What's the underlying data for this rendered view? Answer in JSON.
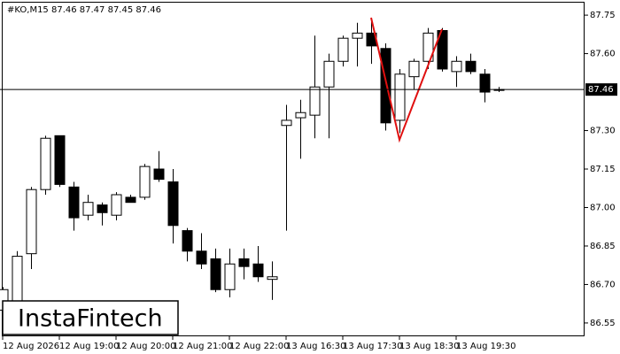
{
  "chart_data": {
    "type": "candlestick",
    "title": "#KO,M15  87.46 87.47 87.45 87.46",
    "watermark": "InstaFintech",
    "categories": [
      "12 Aug 2026",
      null,
      null,
      null,
      "12 Aug 19:00",
      null,
      null,
      null,
      "12 Aug 20:00",
      null,
      null,
      null,
      "12 Aug 21:00",
      null,
      null,
      null,
      "12 Aug 22:00",
      null,
      null,
      null,
      "13 Aug 16:30",
      null,
      null,
      null,
      "13 Aug 17:30",
      null,
      null,
      null,
      "13 Aug 18:30",
      null,
      null,
      null,
      "13 Aug 19:30",
      null,
      null,
      null
    ],
    "open": [
      86.6,
      86.62,
      86.82,
      87.07,
      87.28,
      87.08,
      86.97,
      87.01,
      86.97,
      87.04,
      87.04,
      87.15,
      87.1,
      86.91,
      86.83,
      86.8,
      86.68,
      86.8,
      86.78,
      86.72,
      87.32,
      87.35,
      87.36,
      87.47,
      87.57,
      87.66,
      87.68,
      87.62,
      87.34,
      87.51,
      87.57,
      87.69,
      87.53,
      87.57,
      87.52,
      87.46
    ],
    "high": [
      86.69,
      86.83,
      87.08,
      87.28,
      87.28,
      87.1,
      87.05,
      87.02,
      87.06,
      87.05,
      87.17,
      87.22,
      87.15,
      86.92,
      86.9,
      86.84,
      86.84,
      86.84,
      86.85,
      86.79,
      87.4,
      87.42,
      87.67,
      87.6,
      87.67,
      87.72,
      87.73,
      87.64,
      87.54,
      87.58,
      87.7,
      87.7,
      87.59,
      87.6,
      87.54,
      87.47
    ],
    "low": [
      86.58,
      86.6,
      86.76,
      87.05,
      87.08,
      86.91,
      86.95,
      86.93,
      86.95,
      87.02,
      87.03,
      87.1,
      86.86,
      86.79,
      86.76,
      86.67,
      86.65,
      86.72,
      86.71,
      86.64,
      86.91,
      87.19,
      87.27,
      87.27,
      87.55,
      87.55,
      87.56,
      87.3,
      87.29,
      87.46,
      87.54,
      87.53,
      87.47,
      87.52,
      87.41,
      87.45
    ],
    "close": [
      86.68,
      86.81,
      87.07,
      87.27,
      87.09,
      86.96,
      87.02,
      86.98,
      87.05,
      87.02,
      87.16,
      87.11,
      86.93,
      86.83,
      86.78,
      86.68,
      86.78,
      86.77,
      86.73,
      86.73,
      87.34,
      87.37,
      87.47,
      87.57,
      87.66,
      87.68,
      87.63,
      87.33,
      87.52,
      87.57,
      87.68,
      87.54,
      87.57,
      87.53,
      87.45,
      87.46
    ],
    "up_color": "#ffffff",
    "down_color": "#000000",
    "current_price": 87.46,
    "ylim": [
      86.498,
      87.809
    ],
    "yticks": [
      87.75,
      {
        "value": 87.6,
        "label": "87.60"
      },
      {
        "value": 87.3,
        "label": "87.30"
      },
      87.15,
      {
        "value": 87.0,
        "label": "87.00"
      },
      86.85,
      {
        "value": 86.7,
        "label": "86.70"
      },
      86.55
    ]
  }
}
